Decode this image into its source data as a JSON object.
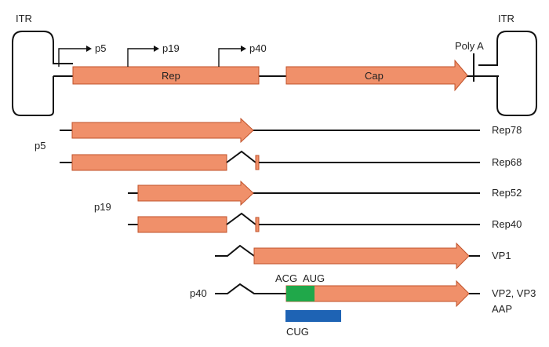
{
  "genome": {
    "left_itr": "ITR",
    "right_itr": "ITR",
    "promoters": [
      "p5",
      "p19",
      "p40"
    ],
    "genes": [
      "Rep",
      "Cap"
    ],
    "polya": "Poly A"
  },
  "groups": {
    "p5": "p5",
    "p19": "p19",
    "p40": "p40"
  },
  "transcripts": {
    "rep78": "Rep78",
    "rep68": "Rep68",
    "rep52": "Rep52",
    "rep40": "Rep40",
    "vp1": "VP1",
    "vp23": "VP2, VP3",
    "aap": "AAP"
  },
  "codons": {
    "acg": "ACG",
    "aug": "AUG",
    "cug": "CUG"
  },
  "colors": {
    "orf": "#F0906A",
    "orf_stroke": "#C0522A",
    "acg_box": "#20A84A",
    "cug_box": "#1E63B4",
    "line": "#111111"
  }
}
